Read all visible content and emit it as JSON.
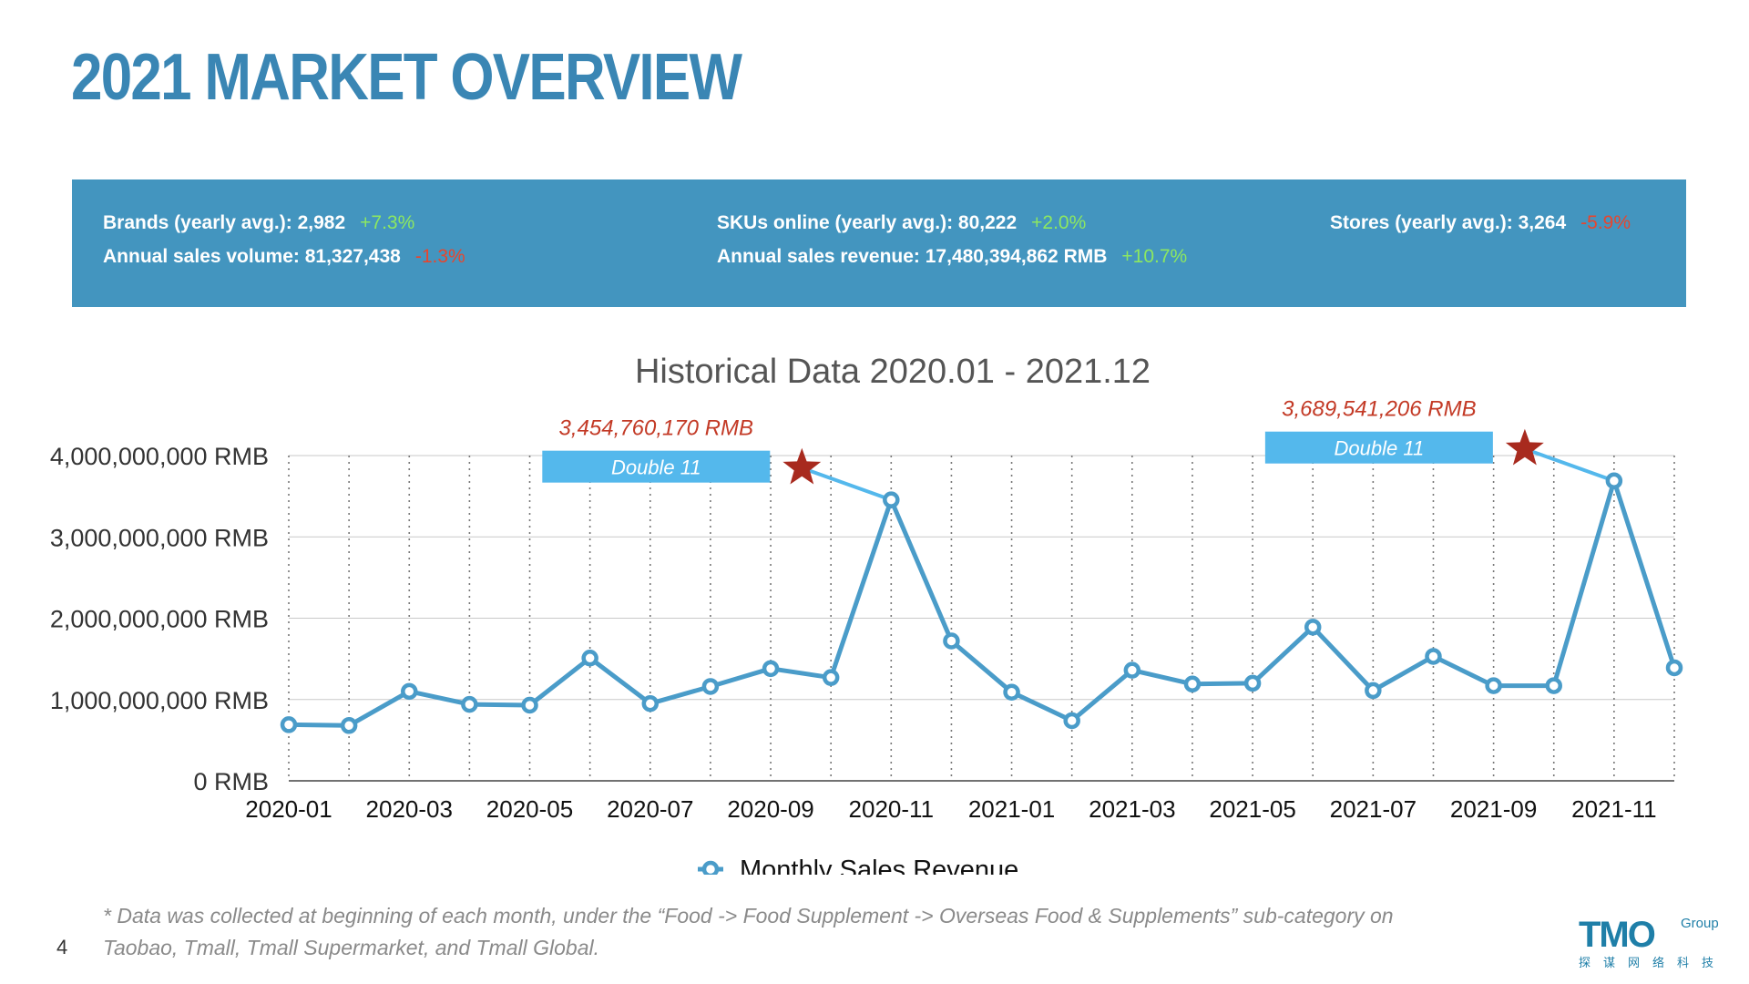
{
  "page": {
    "title": "2021 MARKET OVERVIEW",
    "page_number": "4",
    "footnote_line1": "* Data was collected at beginning of each month, under the “Food -> Food Supplement -> Overseas Food & Supplements” sub-category on",
    "footnote_line2": "Taobao, Tmall, Tmall Supermarket, and Tmall Global.",
    "logo": {
      "main": "TMO",
      "sub": "Group",
      "tagline": "探谋网络科技"
    }
  },
  "stats": {
    "brands": {
      "label": "Brands (yearly avg.): 2,982",
      "change": "+7.3%"
    },
    "skus": {
      "label": "SKUs online (yearly avg.): 80,222",
      "change": "+2.0%"
    },
    "stores": {
      "label": "Stores (yearly avg.): 3,264",
      "change": "-5.9%"
    },
    "volume": {
      "label": "Annual sales volume: 81,327,438",
      "change": "-1.3%"
    },
    "revenue": {
      "label": "Annual sales revenue: 17,480,394,862 RMB",
      "change": "+10.7%"
    }
  },
  "colors": {
    "title": "#3a86b4",
    "stats_bg": "#4395bf",
    "positive": "#8de860",
    "negative": "#e8452d",
    "series": "#4a9cc9",
    "annotation_box": "#54b8ec",
    "annotation_value": "#c33a26",
    "star": "#a82a1e"
  },
  "chart_data": {
    "type": "line",
    "title": "Historical Data 2020.01 - 2021.12",
    "xlabel": "",
    "ylabel": "",
    "x": [
      "2020-01",
      "2020-02",
      "2020-03",
      "2020-04",
      "2020-05",
      "2020-06",
      "2020-07",
      "2020-08",
      "2020-09",
      "2020-10",
      "2020-11",
      "2020-12",
      "2021-01",
      "2021-02",
      "2021-03",
      "2021-04",
      "2021-05",
      "2021-06",
      "2021-07",
      "2021-08",
      "2021-09",
      "2021-10",
      "2021-11",
      "2021-12"
    ],
    "x_tick_labels": [
      "2020-01",
      "2020-03",
      "2020-05",
      "2020-07",
      "2020-09",
      "2020-11",
      "2021-01",
      "2021-03",
      "2021-05",
      "2021-07",
      "2021-09",
      "2021-11"
    ],
    "y_tick_labels": [
      "0 RMB",
      "1,000,000,000 RMB",
      "2,000,000,000 RMB",
      "3,000,000,000 RMB",
      "4,000,000,000 RMB"
    ],
    "ylim": [
      0,
      4000000000
    ],
    "grid": true,
    "legend": "bottom",
    "series": [
      {
        "name": "Monthly Sales Revenue",
        "values": [
          690000000,
          680000000,
          1100000000,
          940000000,
          930000000,
          1510000000,
          950000000,
          1160000000,
          1380000000,
          1270000000,
          3454760170,
          1720000000,
          1090000000,
          740000000,
          1360000000,
          1190000000,
          1200000000,
          1890000000,
          1110000000,
          1530000000,
          1170000000,
          1170000000,
          3689541206,
          1390000000
        ]
      }
    ],
    "annotations": [
      {
        "x": "2020-11",
        "label": "Double 11",
        "value": "3,454,760,170 RMB"
      },
      {
        "x": "2021-11",
        "label": "Double 11",
        "value": "3,689,541,206 RMB"
      }
    ]
  }
}
